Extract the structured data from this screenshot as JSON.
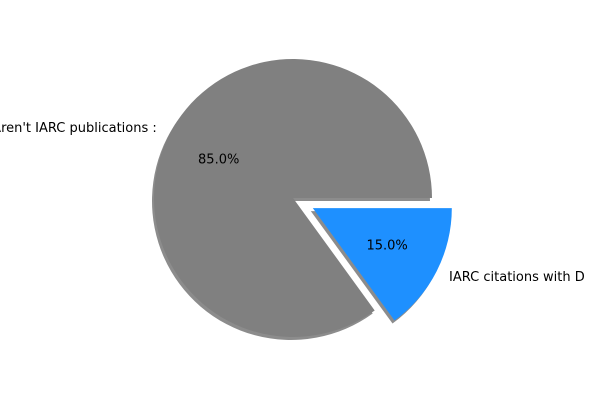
{
  "chart_data": {
    "type": "pie",
    "slices": [
      {
        "label": "Aren't IARC publications :",
        "value": 85.0,
        "pct_label": "85.0%",
        "color": "#808080",
        "exploded": false
      },
      {
        "label": "IARC citations with D",
        "value": 15.0,
        "pct_label": "15.0%",
        "color": "#1e90ff",
        "exploded": true
      }
    ],
    "shadow": true,
    "start_angle": 0,
    "direction": "counterclockwise"
  }
}
